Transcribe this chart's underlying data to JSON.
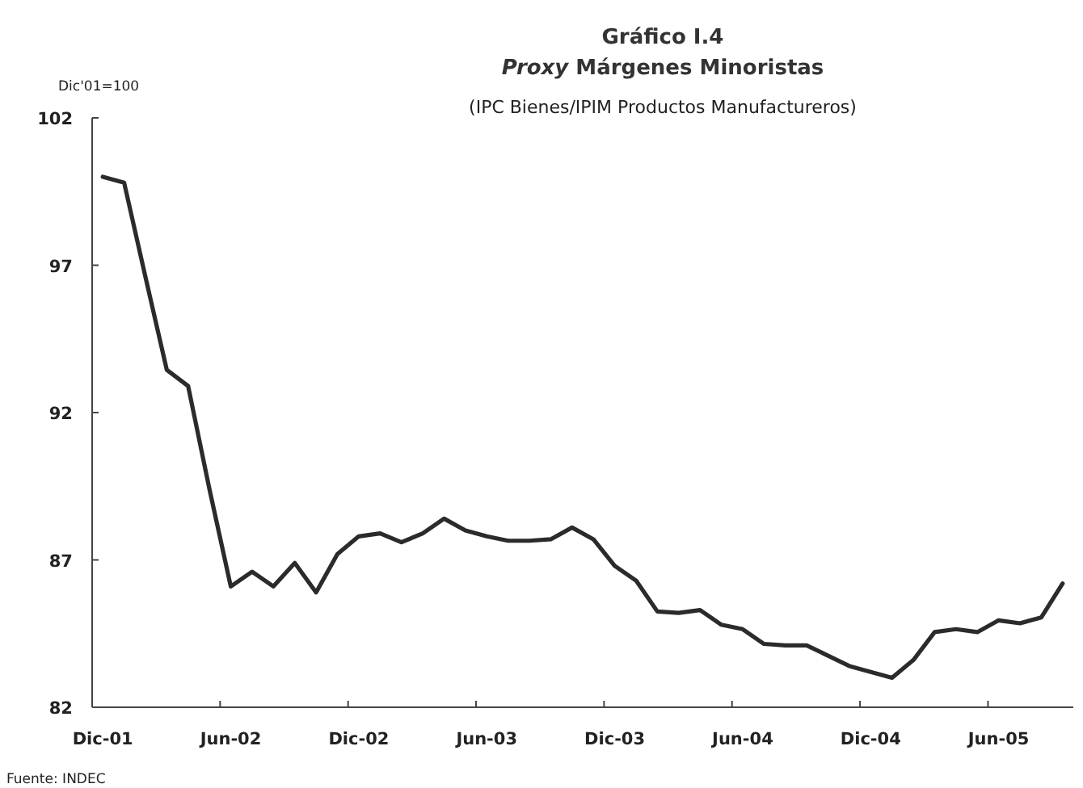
{
  "chart_data": {
    "type": "line",
    "title": "Gráfico I.4\nProxy  Márgenes Minoristas",
    "subtitle": "(IPC Bienes/IPIM Productos Manufactureros)",
    "ylabel": "Dic'01=100",
    "annotations": [
      "Fuente: INDEC"
    ],
    "categories": [
      "Dic-01",
      null,
      null,
      null,
      null,
      null,
      "Jun-02",
      null,
      null,
      null,
      null,
      null,
      "Dic-02",
      null,
      null,
      null,
      null,
      null,
      "Jun-03",
      null,
      null,
      null,
      null,
      null,
      "Dic-03",
      null,
      null,
      null,
      null,
      null,
      "Jun-04",
      null,
      null,
      null,
      null,
      null,
      "Dic-04",
      null,
      null,
      null,
      null,
      null,
      "Jun-05",
      null,
      null,
      null
    ],
    "series": [
      {
        "color": "#2b2b2b",
        "values": [
          100.0,
          99.8,
          96.6,
          93.45,
          92.9,
          89.4,
          86.1,
          86.6,
          86.1,
          86.9,
          85.9,
          87.2,
          87.8,
          87.9,
          87.6,
          87.9,
          88.4,
          88.0,
          87.8,
          87.65,
          87.65,
          87.7,
          88.1,
          87.7,
          86.8,
          86.3,
          85.25,
          85.2,
          85.3,
          84.8,
          84.65,
          84.15,
          84.1,
          84.1,
          83.75,
          83.4,
          83.2,
          83.0,
          83.6,
          84.55,
          84.65,
          84.55,
          84.95,
          84.85,
          85.05,
          86.2
        ]
      }
    ],
    "ylim": [
      82,
      102
    ],
    "yticks": [
      82,
      87,
      92,
      97,
      102
    ],
    "grid": false,
    "marker": "none",
    "line_style": "solid"
  }
}
